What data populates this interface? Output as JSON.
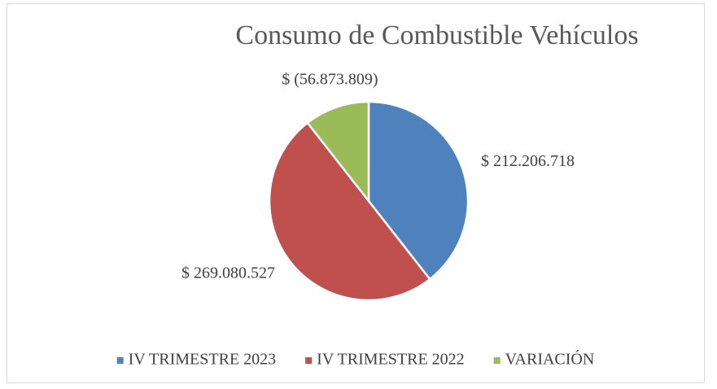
{
  "chart_data": {
    "type": "pie",
    "title": "Consumo de Combustible  Vehículos",
    "categories": [
      "IV TRIMESTRE 2023",
      "IV TRIMESTRE 2022",
      "VARIACIÓN"
    ],
    "values": [
      212206718,
      269080527,
      -56873809
    ],
    "value_labels": [
      "$ 212.206.718",
      "$ 269.080.527",
      "$ (56.873.809)"
    ],
    "colors": [
      "#4f81bd",
      "#c0504d",
      "#9bbb59"
    ],
    "legend": "bottom"
  }
}
